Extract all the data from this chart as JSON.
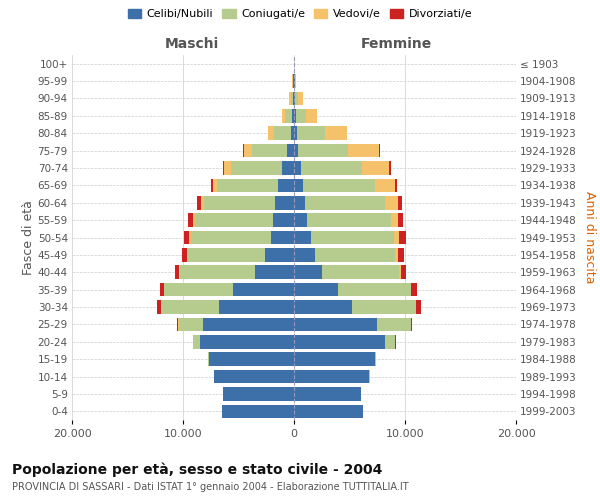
{
  "age_groups": [
    "0-4",
    "5-9",
    "10-14",
    "15-19",
    "20-24",
    "25-29",
    "30-34",
    "35-39",
    "40-44",
    "45-49",
    "50-54",
    "55-59",
    "60-64",
    "65-69",
    "70-74",
    "75-79",
    "80-84",
    "85-89",
    "90-94",
    "95-99",
    "100+"
  ],
  "birth_years": [
    "1999-2003",
    "1994-1998",
    "1989-1993",
    "1984-1988",
    "1979-1983",
    "1974-1978",
    "1969-1973",
    "1964-1968",
    "1959-1963",
    "1954-1958",
    "1949-1953",
    "1944-1948",
    "1939-1943",
    "1934-1938",
    "1929-1933",
    "1924-1928",
    "1919-1923",
    "1914-1918",
    "1909-1913",
    "1904-1908",
    "≤ 1903"
  ],
  "colors": {
    "celibi": "#3d6fa8",
    "coniugati": "#b5cc8e",
    "vedovi": "#f5c26b",
    "divorziati": "#cc2222"
  },
  "maschi": {
    "celibi": [
      6500,
      6400,
      7200,
      7700,
      8500,
      8200,
      6800,
      5500,
      3500,
      2600,
      2100,
      1900,
      1700,
      1400,
      1100,
      600,
      300,
      180,
      100,
      60,
      20
    ],
    "coniugati": [
      0,
      0,
      10,
      50,
      600,
      2200,
      5200,
      6200,
      6800,
      7000,
      7200,
      7000,
      6400,
      5500,
      4600,
      3200,
      1500,
      600,
      200,
      50,
      10
    ],
    "vedovi": [
      0,
      0,
      0,
      0,
      5,
      10,
      20,
      30,
      50,
      80,
      150,
      200,
      300,
      400,
      600,
      700,
      500,
      300,
      120,
      30,
      5
    ],
    "divorziati": [
      0,
      0,
      0,
      5,
      30,
      100,
      300,
      350,
      400,
      450,
      500,
      450,
      350,
      200,
      100,
      50,
      30,
      20,
      10,
      5,
      0
    ]
  },
  "femmine": {
    "celibi": [
      6200,
      6000,
      6800,
      7300,
      8200,
      7500,
      5200,
      4000,
      2500,
      1900,
      1500,
      1200,
      1000,
      800,
      600,
      400,
      250,
      150,
      100,
      50,
      20
    ],
    "coniugati": [
      0,
      0,
      10,
      100,
      900,
      3000,
      5800,
      6500,
      7000,
      7200,
      7500,
      7500,
      7200,
      6500,
      5500,
      4500,
      2500,
      900,
      300,
      60,
      10
    ],
    "vedovi": [
      0,
      0,
      0,
      0,
      5,
      10,
      30,
      50,
      100,
      250,
      450,
      700,
      1200,
      1800,
      2500,
      2800,
      2000,
      1000,
      400,
      80,
      10
    ],
    "divorziati": [
      0,
      0,
      0,
      5,
      50,
      150,
      450,
      500,
      500,
      600,
      600,
      450,
      350,
      200,
      120,
      60,
      30,
      20,
      10,
      5,
      0
    ]
  },
  "xlim": 20000,
  "title": "Popolazione per età, sesso e stato civile - 2004",
  "subtitle": "PROVINCIA DI SASSARI - Dati ISTAT 1° gennaio 2004 - Elaborazione TUTTITALIA.IT",
  "xlabel_left": "Maschi",
  "xlabel_right": "Femmine",
  "ylabel_left": "Fasce di età",
  "ylabel_right": "Anni di nascita",
  "legend_labels": [
    "Celibi/Nubili",
    "Coniugati/e",
    "Vedovi/e",
    "Divorziati/e"
  ],
  "tick_labels": [
    "20.000",
    "10.000",
    "0",
    "10.000",
    "20.000"
  ],
  "background_color": "#ffffff",
  "grid_color": "#cccccc",
  "label_color": "#555555",
  "right_label_color": "#e06000"
}
